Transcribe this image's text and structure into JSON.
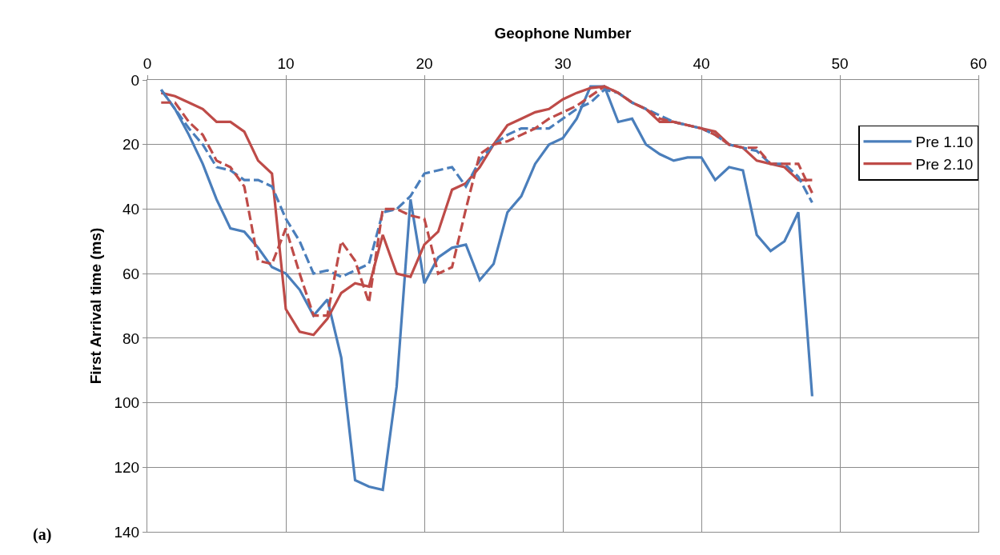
{
  "chart_data": {
    "type": "line",
    "xlabel": "Geophone Number",
    "ylabel": "First Arrival time (ms)",
    "x": [
      1,
      2,
      3,
      4,
      5,
      6,
      7,
      8,
      9,
      10,
      11,
      12,
      13,
      14,
      15,
      16,
      17,
      18,
      19,
      20,
      21,
      22,
      23,
      24,
      25,
      26,
      27,
      28,
      29,
      30,
      31,
      32,
      33,
      34,
      35,
      36,
      37,
      38,
      39,
      40,
      41,
      42,
      43,
      44,
      45,
      46,
      47,
      48
    ],
    "series": [
      {
        "name": "Pre 1.10",
        "color": "#4a7ebb",
        "line_style": "solid",
        "values": [
          3,
          9,
          17,
          26,
          37,
          46,
          47,
          52,
          58,
          60,
          65,
          73,
          68,
          86,
          124,
          126,
          127,
          95,
          37,
          63,
          55,
          52,
          51,
          62,
          57,
          41,
          36,
          26,
          20,
          18,
          12,
          2,
          2,
          13,
          12,
          20,
          23,
          25,
          24,
          24,
          31,
          27,
          28,
          48,
          53,
          50,
          41,
          98
        ]
      },
      {
        "name": "Pre 2.10",
        "color": "#be4b48",
        "line_style": "solid",
        "values": [
          4,
          5,
          7,
          9,
          13,
          13,
          16,
          25,
          29,
          71,
          78,
          79,
          74,
          66,
          63,
          64,
          48,
          60,
          61,
          51,
          47,
          34,
          32,
          27,
          20,
          14,
          12,
          10,
          9,
          6,
          4,
          2.5,
          2,
          4,
          7,
          9,
          13,
          13,
          14,
          15,
          16,
          20,
          21,
          25,
          26,
          27,
          31,
          31
        ]
      },
      {
        "color": "#4a7ebb",
        "line_style": "dashed",
        "values": [
          3,
          9,
          15,
          20,
          27,
          28,
          31,
          31,
          33,
          43,
          50,
          60,
          59,
          61,
          59,
          57,
          41,
          40,
          36,
          29,
          28,
          27,
          33,
          25,
          20,
          17,
          15,
          15,
          15,
          12,
          9,
          7,
          3,
          4,
          7,
          9,
          11,
          13,
          14,
          15,
          17,
          20,
          21,
          22,
          26,
          26,
          30,
          38
        ]
      },
      {
        "color": "#be4b48",
        "line_style": "dashed",
        "values": [
          7,
          7,
          13,
          17,
          25,
          27,
          33,
          56,
          57,
          46,
          60,
          73,
          73,
          50,
          56,
          69,
          40,
          40,
          42,
          43,
          60,
          58,
          40,
          23,
          20,
          19,
          17,
          15,
          12,
          10,
          8,
          5,
          2,
          4,
          7,
          9,
          12,
          13,
          14,
          15,
          17,
          20,
          21,
          21,
          26,
          26,
          26,
          35
        ]
      }
    ],
    "xlim": [
      0,
      60
    ],
    "xticks": [
      0,
      10,
      20,
      30,
      40,
      50,
      60
    ],
    "ylim": [
      140,
      0
    ],
    "yticks": [
      0,
      20,
      40,
      60,
      80,
      100,
      120,
      140
    ],
    "grid": true,
    "legend": "top right",
    "marker": "none",
    "annotations": [
      "(a)"
    ]
  }
}
